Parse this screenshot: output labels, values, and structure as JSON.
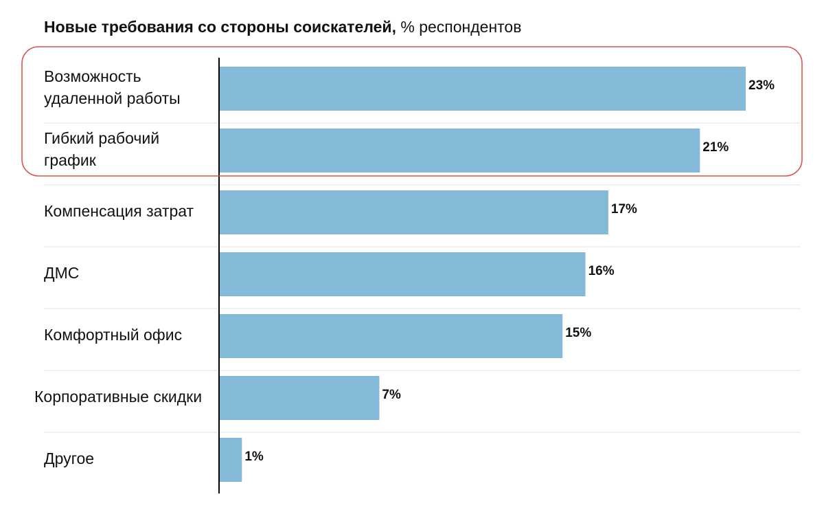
{
  "title": {
    "main": "Новые требования со стороны соискателей,",
    "unit": "% респондентов"
  },
  "colors": {
    "bar": "#84bad8",
    "highlight": "#d9534f",
    "gridline": "#e2e2e2",
    "axis": "#000000"
  },
  "chart_data": {
    "type": "bar",
    "orientation": "horizontal",
    "title": "Новые требования со стороны соискателей, % респондентов",
    "categories": [
      "Возможность удаленной работы",
      "Гибкий рабочий график",
      "Компенсация затрат",
      "ДМС",
      "Комфортный офис",
      "Корпоративные скидки",
      "Другое"
    ],
    "category_lines": [
      [
        "Возможность",
        "удаленной работы"
      ],
      [
        "Гибкий рабочий",
        "график"
      ],
      [
        "Компенсация затрат"
      ],
      [
        "ДМС"
      ],
      [
        "Комфортный офис"
      ],
      [
        "Корпоративные скидки"
      ],
      [
        "Другое"
      ]
    ],
    "values": [
      23,
      21,
      17,
      16,
      15,
      7,
      1
    ],
    "value_labels": [
      "23%",
      "21%",
      "17%",
      "16%",
      "15%",
      "7%",
      "1%"
    ],
    "xlim": [
      0,
      25
    ],
    "highlighted_categories": [
      "Возможность удаленной работы",
      "Гибкий рабочий график"
    ],
    "grid": false,
    "legend": "none"
  }
}
